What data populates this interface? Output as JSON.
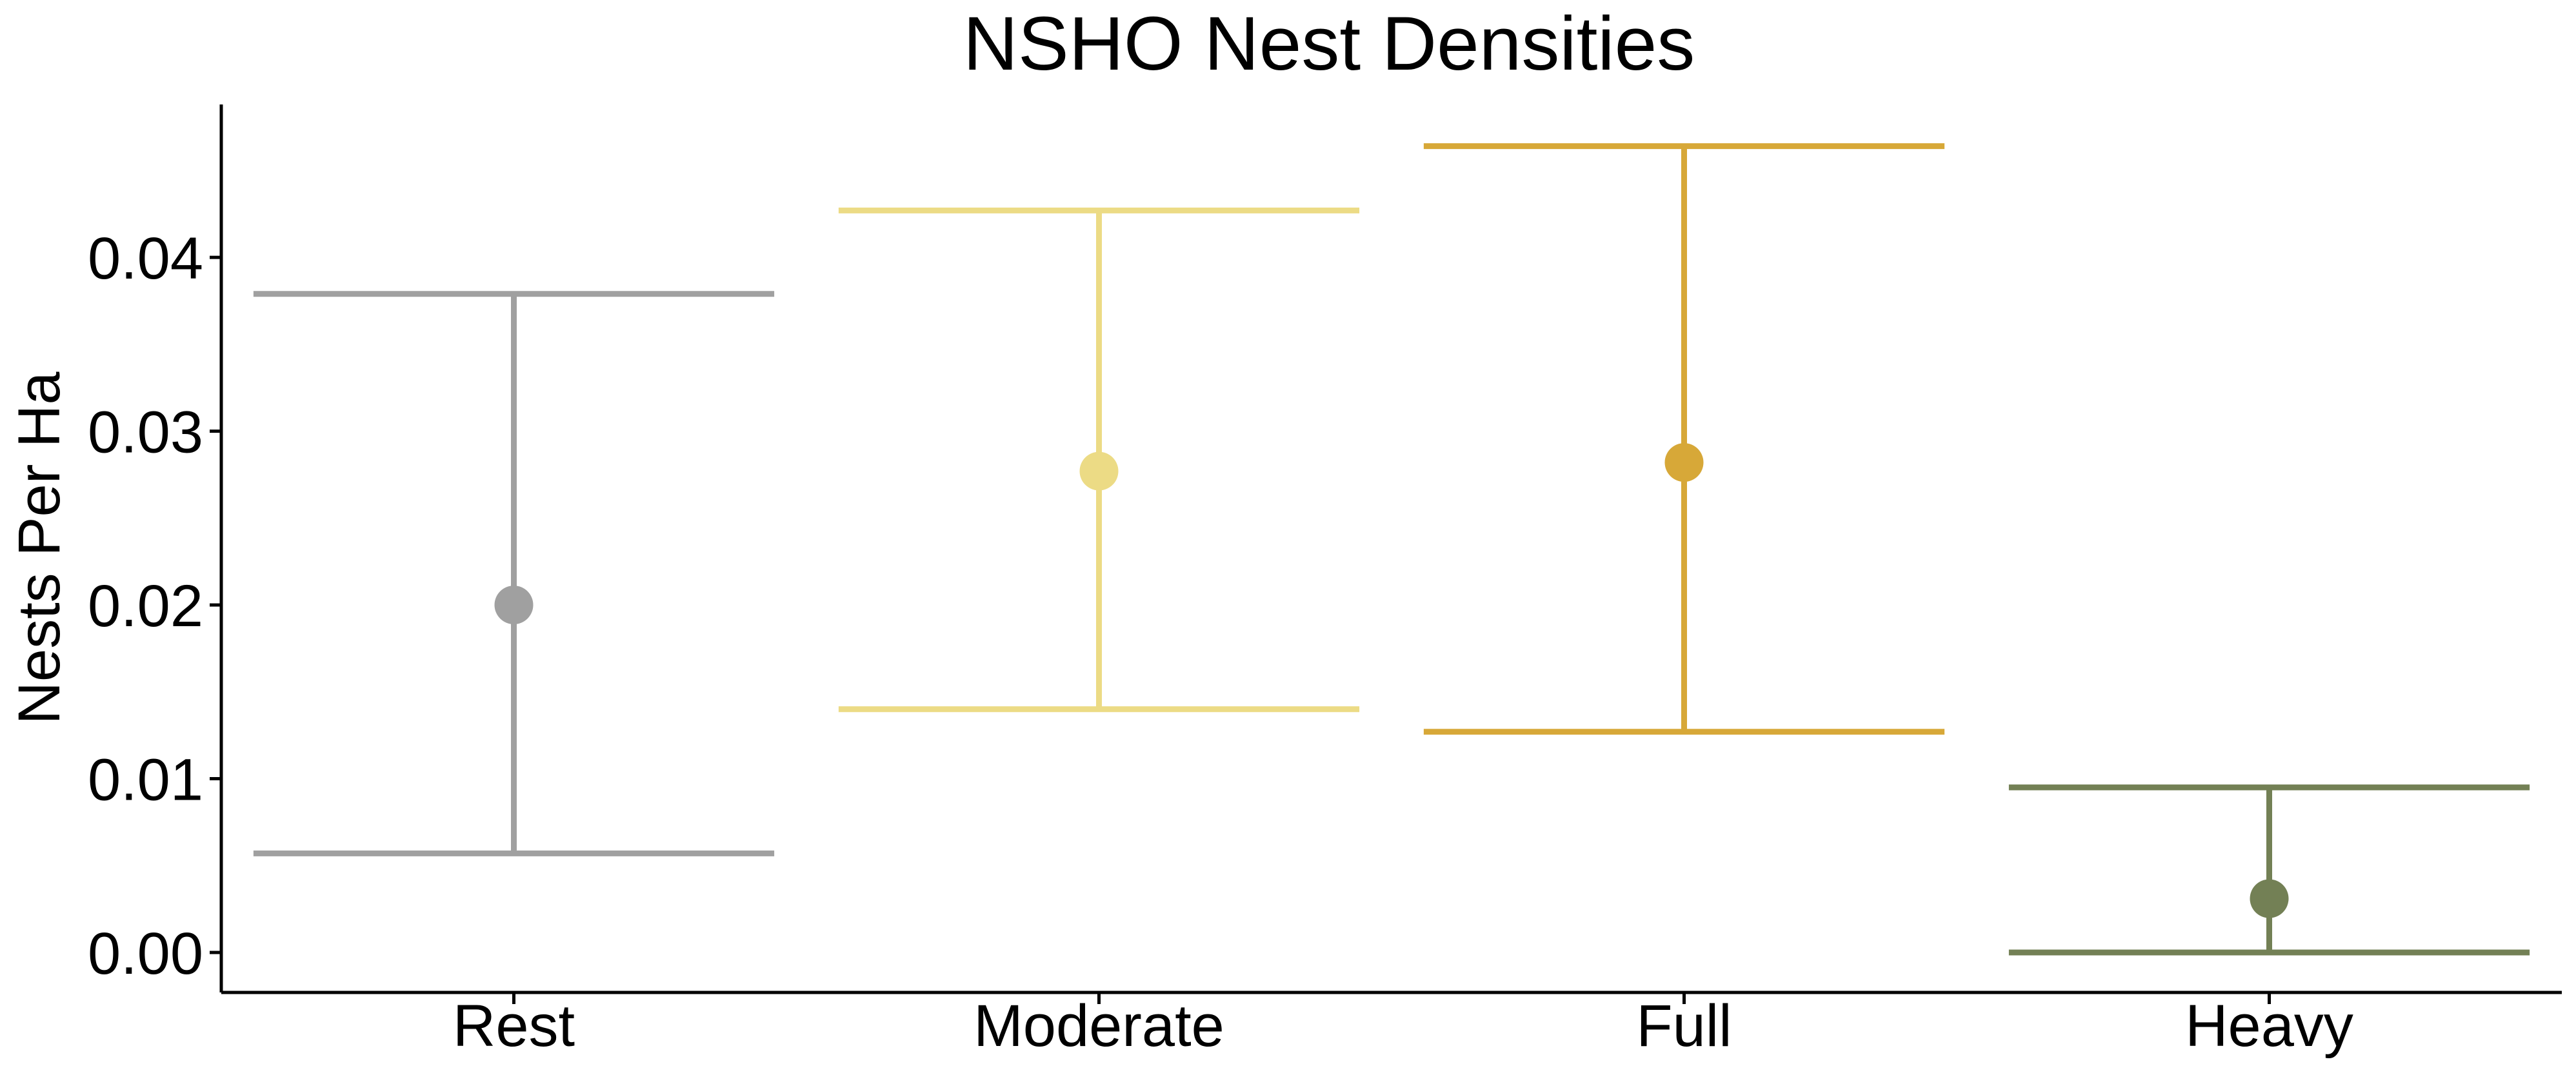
{
  "chart_data": {
    "type": "scatter",
    "title": "NSHO Nest Densities",
    "xlabel": "",
    "ylabel": "Nests Per Ha",
    "categories": [
      "Rest",
      "Moderate",
      "Full",
      "Heavy"
    ],
    "values": [
      0.02,
      0.0277,
      0.0282,
      0.0031
    ],
    "lower": [
      0.0057,
      0.014,
      0.0127,
      0.0
    ],
    "upper": [
      0.0379,
      0.0427,
      0.0464,
      0.0095
    ],
    "colors": [
      "#a0a0a0",
      "#ecdb85",
      "#d7a838",
      "#738055"
    ],
    "ylim": [
      -0.0023,
      0.0488
    ],
    "yticks": [
      0.0,
      0.01,
      0.02,
      0.03,
      0.04
    ],
    "ytick_labels": [
      "0.00",
      "0.01",
      "0.02",
      "0.03",
      "0.04"
    ],
    "grid": false,
    "legend": "none"
  }
}
